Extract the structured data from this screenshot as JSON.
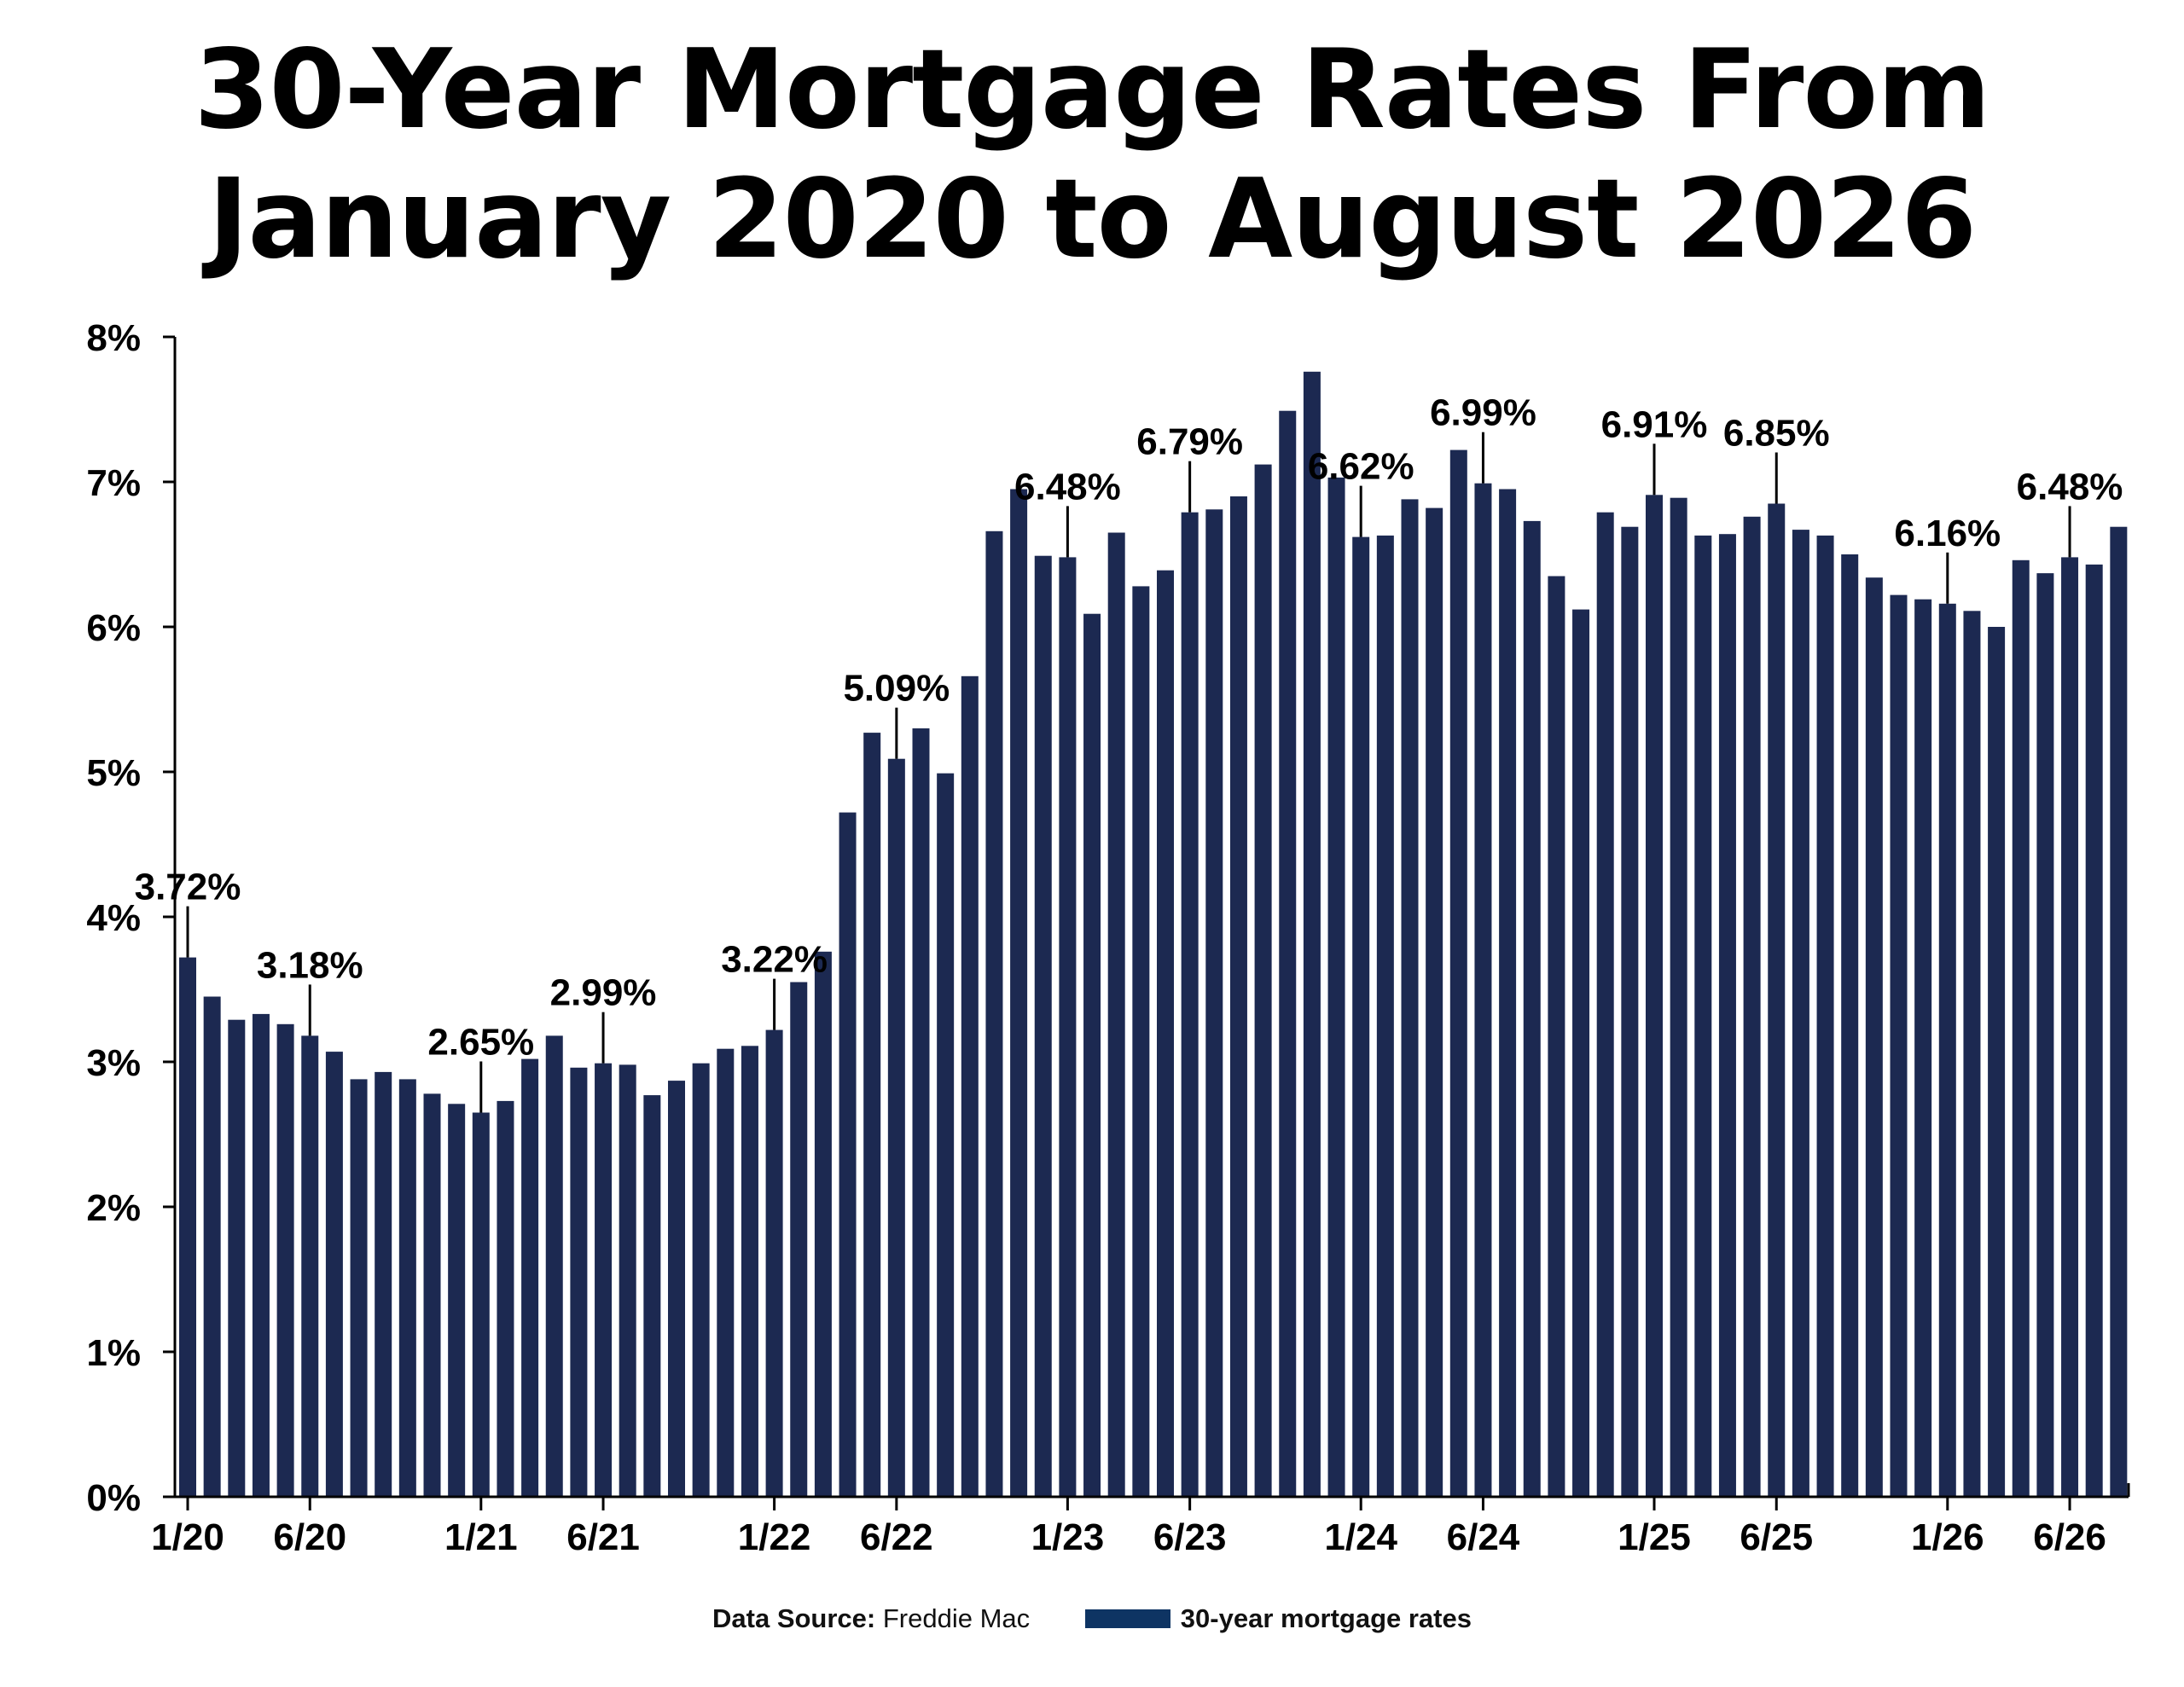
{
  "title": {
    "line1": "30-Year Mortgage Rates From",
    "line2": "January 2020 to August 2026"
  },
  "colors": {
    "bar": "#1c2951",
    "axis": "#000000",
    "legend": "#0e3463"
  },
  "footer": {
    "source_label": "Data Source:",
    "source_value": "Freddie Mac",
    "legend_label": "30-year mortgage rates"
  },
  "chart_data": {
    "type": "bar",
    "y_ticks": [
      "0%",
      "1%",
      "2%",
      "3%",
      "4%",
      "5%",
      "6%",
      "7%",
      "8%"
    ],
    "ylim": [
      0,
      8
    ],
    "x_tick_labels": [
      {
        "label": "1/20",
        "index": 0
      },
      {
        "label": "6/20",
        "index": 5
      },
      {
        "label": "1/21",
        "index": 12
      },
      {
        "label": "6/21",
        "index": 17
      },
      {
        "label": "1/22",
        "index": 24
      },
      {
        "label": "6/22",
        "index": 29
      },
      {
        "label": "1/23",
        "index": 36
      },
      {
        "label": "6/23",
        "index": 41
      },
      {
        "label": "1/24",
        "index": 48
      },
      {
        "label": "6/24",
        "index": 53
      },
      {
        "label": "1/25",
        "index": 60
      },
      {
        "label": "6/25",
        "index": 65
      },
      {
        "label": "1/26",
        "index": 72
      },
      {
        "label": "6/26",
        "index": 77
      }
    ],
    "categories": [
      "1/20",
      "2/20",
      "3/20",
      "4/20",
      "5/20",
      "6/20",
      "7/20",
      "8/20",
      "9/20",
      "10/20",
      "11/20",
      "12/20",
      "1/21",
      "2/21",
      "3/21",
      "4/21",
      "5/21",
      "6/21",
      "7/21",
      "8/21",
      "9/21",
      "10/21",
      "11/21",
      "12/21",
      "1/22",
      "2/22",
      "3/22",
      "4/22",
      "5/22",
      "6/22",
      "7/22",
      "8/22",
      "9/22",
      "10/22",
      "11/22",
      "12/22",
      "1/23",
      "2/23",
      "3/23",
      "4/23",
      "5/23",
      "6/23",
      "7/23",
      "8/23",
      "9/23",
      "10/23",
      "11/23",
      "12/23",
      "1/24",
      "2/24",
      "3/24",
      "4/24",
      "5/24",
      "6/24",
      "7/24",
      "8/24",
      "9/24",
      "10/24",
      "11/24",
      "12/24",
      "1/25",
      "2/25",
      "3/25",
      "4/25",
      "5/25",
      "6/25",
      "7/25",
      "8/25",
      "9/25",
      "10/25",
      "11/25",
      "12/25",
      "1/26",
      "2/26",
      "3/26",
      "4/26",
      "5/26",
      "6/26",
      "7/26",
      "8/26"
    ],
    "values": [
      3.72,
      3.45,
      3.29,
      3.33,
      3.26,
      3.18,
      3.07,
      2.88,
      2.93,
      2.88,
      2.78,
      2.71,
      2.65,
      2.73,
      3.02,
      3.18,
      2.96,
      2.99,
      2.98,
      2.77,
      2.87,
      2.99,
      3.09,
      3.11,
      3.22,
      3.55,
      3.76,
      4.72,
      5.27,
      5.09,
      5.3,
      4.99,
      5.66,
      6.66,
      6.95,
      6.49,
      6.48,
      6.09,
      6.65,
      6.28,
      6.39,
      6.79,
      6.81,
      6.9,
      7.12,
      7.49,
      7.76,
      7.03,
      6.62,
      6.63,
      6.88,
      6.82,
      7.22,
      6.99,
      6.95,
      6.73,
      6.35,
      6.12,
      6.79,
      6.69,
      6.91,
      6.89,
      6.63,
      6.64,
      6.76,
      6.85,
      6.67,
      6.63,
      6.5,
      6.34,
      6.22,
      6.19,
      6.16,
      6.11,
      6.0,
      6.46,
      6.37,
      6.48,
      6.43,
      6.69
    ],
    "annotations": [
      {
        "index": 0,
        "label": "3.72%"
      },
      {
        "index": 5,
        "label": "3.18%"
      },
      {
        "index": 12,
        "label": "2.65%"
      },
      {
        "index": 17,
        "label": "2.99%"
      },
      {
        "index": 24,
        "label": "3.22%"
      },
      {
        "index": 29,
        "label": "5.09%"
      },
      {
        "index": 36,
        "label": "6.48%"
      },
      {
        "index": 41,
        "label": "6.79%"
      },
      {
        "index": 48,
        "label": "6.62%"
      },
      {
        "index": 53,
        "label": "6.99%"
      },
      {
        "index": 60,
        "label": "6.91%"
      },
      {
        "index": 65,
        "label": "6.85%"
      },
      {
        "index": 72,
        "label": "6.16%"
      },
      {
        "index": 77,
        "label": "6.48%"
      }
    ]
  }
}
